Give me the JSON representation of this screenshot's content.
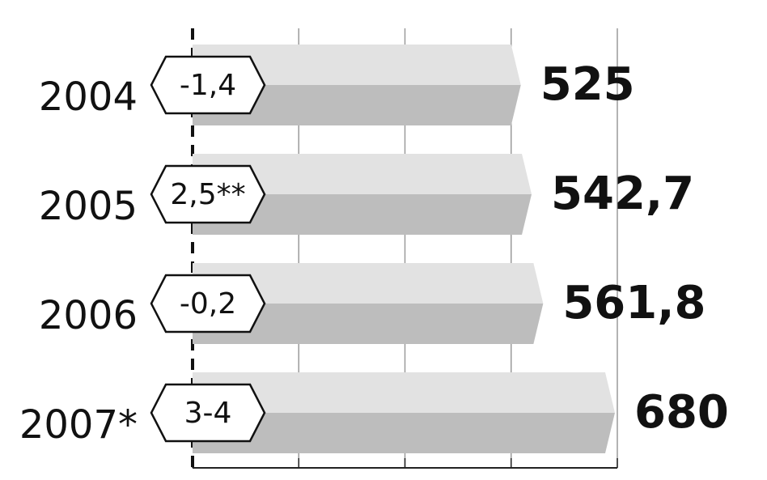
{
  "chart_data": {
    "type": "hbar",
    "categories": [
      "2004",
      "2005",
      "2006",
      "2007*"
    ],
    "values": [
      525,
      542.7,
      561.8,
      680
    ],
    "value_labels": [
      "525",
      "542,7",
      "561,8",
      "680"
    ],
    "annotations": [
      "-1,4",
      "2,5**",
      "-0,2",
      "3-4"
    ],
    "colors": [
      "#e2e2e2",
      "#bdbdbd"
    ],
    "xlim": [
      0,
      700
    ],
    "xticks": [
      0,
      175,
      350,
      525,
      700
    ],
    "grid": true
  }
}
